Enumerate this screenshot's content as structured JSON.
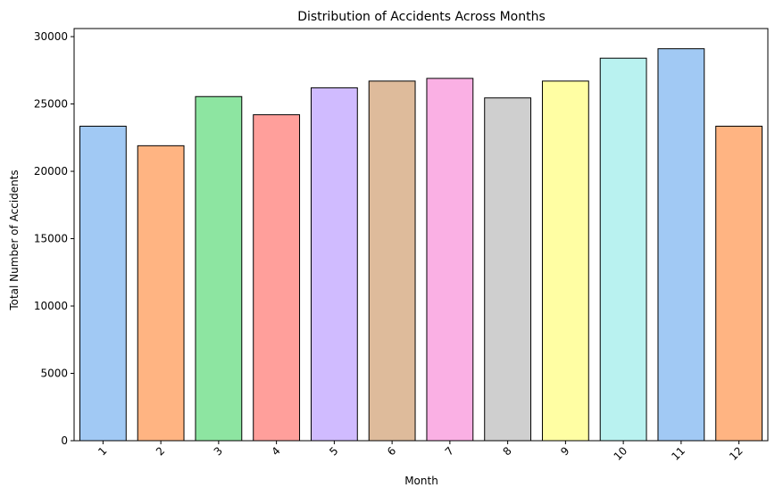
{
  "chart_data": {
    "type": "bar",
    "title": "Distribution of Accidents Across Months",
    "xlabel": "Month",
    "ylabel": "Total Number of Accidents",
    "categories": [
      "1",
      "2",
      "3",
      "4",
      "5",
      "6",
      "7",
      "8",
      "9",
      "10",
      "11",
      "12"
    ],
    "values": [
      23350,
      21900,
      25550,
      24200,
      26200,
      26700,
      26900,
      25450,
      26700,
      28400,
      29100,
      23350
    ],
    "ylim": [
      0,
      30600
    ],
    "yticks": [
      0,
      5000,
      10000,
      15000,
      20000,
      25000,
      30000
    ],
    "ytick_labels": [
      "0",
      "5000",
      "10000",
      "15000",
      "20000",
      "25000",
      "30000"
    ],
    "colors": [
      "#a1c9f4",
      "#ffb482",
      "#8de5a1",
      "#ff9f9b",
      "#d0bbff",
      "#debb9b",
      "#fab0e4",
      "#cfcfcf",
      "#fffea3",
      "#b9f2f0",
      "#a1c9f4",
      "#ffb482"
    ],
    "bar_edge_color": "#000000",
    "grid": false,
    "legend": "none",
    "xtick_rotation": 45
  }
}
